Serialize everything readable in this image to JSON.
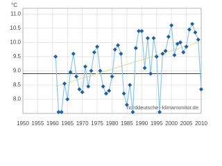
{
  "chart_data": {
    "type": "line",
    "unit_label": "°C",
    "watermark": "norddeutscher-klimamonitor.de",
    "x": [
      1961,
      1962,
      1963,
      1964,
      1965,
      1966,
      1967,
      1968,
      1969,
      1970,
      1971,
      1972,
      1973,
      1974,
      1975,
      1976,
      1977,
      1978,
      1979,
      1980,
      1981,
      1982,
      1983,
      1984,
      1985,
      1986,
      1987,
      1988,
      1989,
      1990,
      1991,
      1992,
      1993,
      1994,
      1995,
      1996,
      1997,
      1998,
      1999,
      2000,
      2001,
      2002,
      2003,
      2004,
      2005,
      2006,
      2007,
      2008,
      2009,
      2010
    ],
    "values": [
      9.5,
      7.55,
      7.55,
      8.55,
      8.0,
      8.95,
      9.6,
      8.8,
      8.35,
      8.25,
      9.15,
      8.45,
      9.0,
      9.65,
      9.85,
      9.0,
      8.45,
      8.2,
      8.3,
      8.8,
      9.75,
      9.9,
      9.6,
      8.2,
      7.8,
      8.5,
      7.55,
      9.8,
      10.4,
      10.4,
      9.1,
      10.15,
      8.9,
      10.15,
      9.5,
      7.55,
      9.6,
      9.7,
      10.2,
      10.6,
      9.55,
      9.95,
      10.0,
      9.65,
      9.85,
      10.45,
      10.65,
      10.35,
      10.1,
      8.35
    ],
    "color": "#8cc8ec",
    "marker_color": "#1f5fa0",
    "trend": {
      "x": [
        1961,
        2009
      ],
      "values": [
        8.45,
        10.0
      ],
      "color": "#e0e89a"
    },
    "reference": 8.9,
    "xlim": [
      1950,
      2010
    ],
    "xticks": [
      1950,
      1955,
      1960,
      1965,
      1970,
      1975,
      1980,
      1985,
      1990,
      1995,
      2000,
      2005,
      2010
    ],
    "ylim": [
      7.5,
      11.2
    ],
    "yticks": [
      {
        "value": 8,
        "label": "8.0"
      },
      8.5,
      {
        "value": 9,
        "label": "9.0"
      },
      9.5,
      {
        "value": 10,
        "label": "10.0"
      },
      10.5,
      {
        "value": 11,
        "label": "11.0"
      }
    ],
    "grid": true
  }
}
